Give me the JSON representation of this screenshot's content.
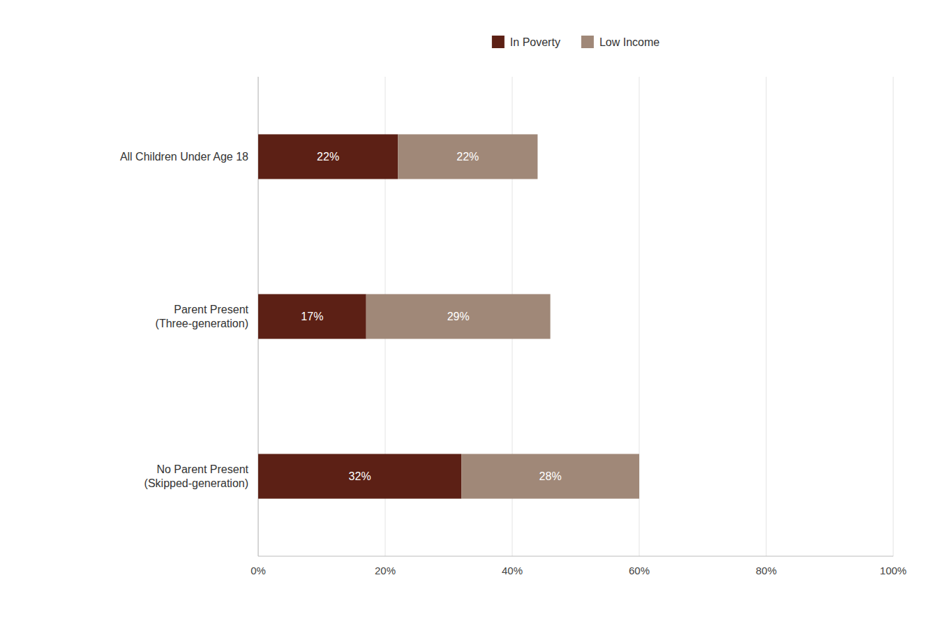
{
  "chart_data": {
    "type": "bar",
    "orientation": "horizontal",
    "stacked": true,
    "categories": [
      "All Children Under Age 18",
      "Parent Present\n(Three-generation)",
      "No Parent Present\n(Skipped-generation)"
    ],
    "series": [
      {
        "name": "In Poverty",
        "color": "#5C2015",
        "values": [
          22,
          17,
          32
        ],
        "value_labels": [
          "22%",
          "17%",
          "32%"
        ]
      },
      {
        "name": "Low Income",
        "color": "#A08878",
        "values": [
          22,
          29,
          28
        ],
        "value_labels": [
          "22%",
          "29%",
          "28%"
        ]
      }
    ],
    "xlim": [
      0,
      100
    ],
    "xticks": [
      {
        "value": 0,
        "label": "0%"
      },
      {
        "value": 20,
        "label": "20%"
      },
      {
        "value": 40,
        "label": "40%"
      },
      {
        "value": 60,
        "label": "60%"
      },
      {
        "value": 80,
        "label": "80%"
      },
      {
        "value": 100,
        "label": "100%"
      }
    ],
    "grid": true,
    "data_labels": true,
    "legend": "top"
  }
}
